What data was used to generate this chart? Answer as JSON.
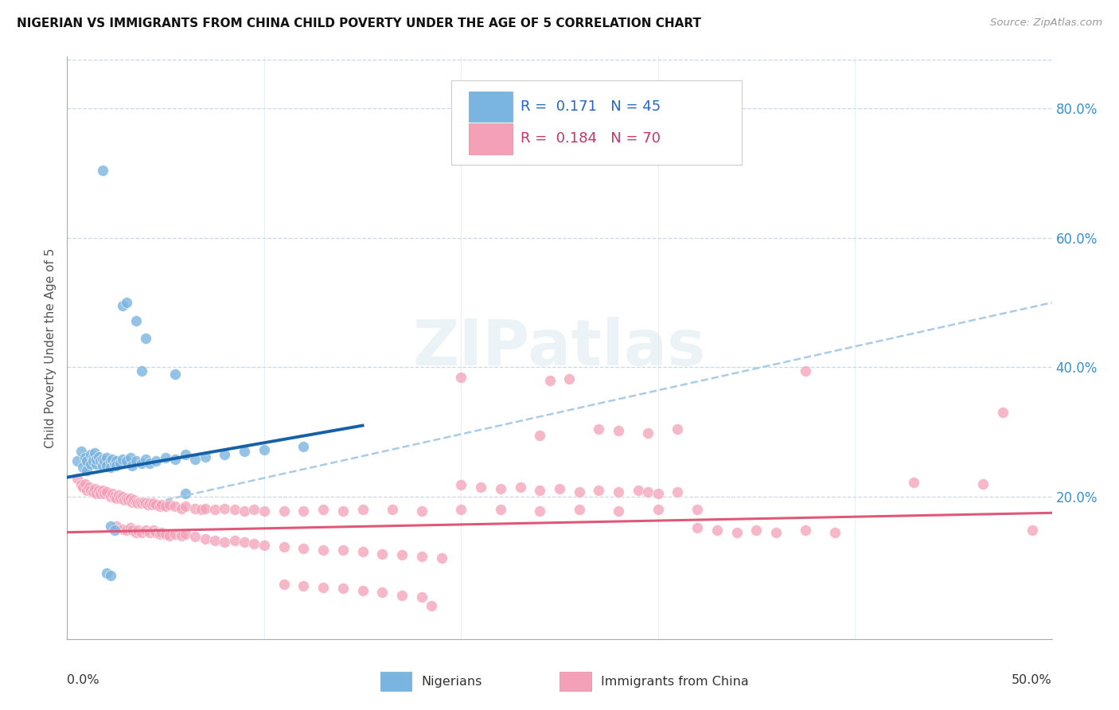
{
  "title": "NIGERIAN VS IMMIGRANTS FROM CHINA CHILD POVERTY UNDER THE AGE OF 5 CORRELATION CHART",
  "source": "Source: ZipAtlas.com",
  "ylabel": "Child Poverty Under the Age of 5",
  "xmin": 0.0,
  "xmax": 0.5,
  "ymin": -0.02,
  "ymax": 0.88,
  "yticks": [
    0.0,
    0.2,
    0.4,
    0.6,
    0.8
  ],
  "ytick_labels": [
    "",
    "20.0%",
    "40.0%",
    "60.0%",
    "80.0%"
  ],
  "blue_color": "#7ab4e0",
  "pink_color": "#f4a0b8",
  "blue_line_color": "#1560a8",
  "pink_line_color": "#e05878",
  "dashed_line_color": "#aacce8",
  "background_color": "#ffffff",
  "grid_color": "#c8d8e8",
  "blue_scatter": [
    [
      0.005,
      0.255
    ],
    [
      0.007,
      0.27
    ],
    [
      0.008,
      0.245
    ],
    [
      0.009,
      0.26
    ],
    [
      0.01,
      0.24
    ],
    [
      0.01,
      0.255
    ],
    [
      0.012,
      0.25
    ],
    [
      0.012,
      0.265
    ],
    [
      0.013,
      0.26
    ],
    [
      0.013,
      0.255
    ],
    [
      0.014,
      0.268
    ],
    [
      0.015,
      0.25
    ],
    [
      0.015,
      0.258
    ],
    [
      0.016,
      0.262
    ],
    [
      0.017,
      0.255
    ],
    [
      0.018,
      0.258
    ],
    [
      0.018,
      0.248
    ],
    [
      0.019,
      0.255
    ],
    [
      0.02,
      0.26
    ],
    [
      0.02,
      0.248
    ],
    [
      0.022,
      0.255
    ],
    [
      0.022,
      0.245
    ],
    [
      0.023,
      0.258
    ],
    [
      0.024,
      0.25
    ],
    [
      0.025,
      0.255
    ],
    [
      0.025,
      0.248
    ],
    [
      0.027,
      0.252
    ],
    [
      0.028,
      0.258
    ],
    [
      0.03,
      0.255
    ],
    [
      0.032,
      0.26
    ],
    [
      0.033,
      0.248
    ],
    [
      0.035,
      0.255
    ],
    [
      0.038,
      0.252
    ],
    [
      0.04,
      0.258
    ],
    [
      0.042,
      0.252
    ],
    [
      0.045,
      0.255
    ],
    [
      0.05,
      0.26
    ],
    [
      0.055,
      0.258
    ],
    [
      0.06,
      0.265
    ],
    [
      0.065,
      0.258
    ],
    [
      0.07,
      0.262
    ],
    [
      0.08,
      0.265
    ],
    [
      0.09,
      0.27
    ],
    [
      0.1,
      0.272
    ],
    [
      0.12,
      0.278
    ]
  ],
  "blue_outliers": [
    [
      0.018,
      0.705
    ],
    [
      0.028,
      0.495
    ],
    [
      0.03,
      0.5
    ],
    [
      0.035,
      0.472
    ],
    [
      0.04,
      0.445
    ],
    [
      0.038,
      0.395
    ],
    [
      0.055,
      0.39
    ],
    [
      0.022,
      0.155
    ],
    [
      0.024,
      0.148
    ],
    [
      0.06,
      0.205
    ],
    [
      0.02,
      0.082
    ],
    [
      0.022,
      0.078
    ]
  ],
  "pink_scatter": [
    [
      0.005,
      0.228
    ],
    [
      0.007,
      0.218
    ],
    [
      0.008,
      0.215
    ],
    [
      0.009,
      0.22
    ],
    [
      0.01,
      0.21
    ],
    [
      0.011,
      0.215
    ],
    [
      0.012,
      0.21
    ],
    [
      0.013,
      0.208
    ],
    [
      0.014,
      0.212
    ],
    [
      0.015,
      0.205
    ],
    [
      0.016,
      0.21
    ],
    [
      0.017,
      0.205
    ],
    [
      0.018,
      0.21
    ],
    [
      0.019,
      0.205
    ],
    [
      0.02,
      0.208
    ],
    [
      0.022,
      0.2
    ],
    [
      0.023,
      0.205
    ],
    [
      0.024,
      0.2
    ],
    [
      0.025,
      0.198
    ],
    [
      0.026,
      0.202
    ],
    [
      0.027,
      0.198
    ],
    [
      0.028,
      0.2
    ],
    [
      0.029,
      0.195
    ],
    [
      0.03,
      0.198
    ],
    [
      0.031,
      0.195
    ],
    [
      0.032,
      0.198
    ],
    [
      0.033,
      0.192
    ],
    [
      0.034,
      0.195
    ],
    [
      0.035,
      0.192
    ],
    [
      0.036,
      0.19
    ],
    [
      0.037,
      0.192
    ],
    [
      0.038,
      0.19
    ],
    [
      0.039,
      0.192
    ],
    [
      0.04,
      0.19
    ],
    [
      0.041,
      0.188
    ],
    [
      0.042,
      0.19
    ],
    [
      0.043,
      0.188
    ],
    [
      0.044,
      0.19
    ],
    [
      0.045,
      0.188
    ],
    [
      0.047,
      0.185
    ],
    [
      0.048,
      0.188
    ],
    [
      0.05,
      0.185
    ],
    [
      0.052,
      0.188
    ],
    [
      0.055,
      0.185
    ],
    [
      0.058,
      0.182
    ],
    [
      0.06,
      0.185
    ],
    [
      0.065,
      0.182
    ],
    [
      0.068,
      0.18
    ],
    [
      0.07,
      0.182
    ],
    [
      0.075,
      0.18
    ],
    [
      0.08,
      0.182
    ],
    [
      0.085,
      0.18
    ],
    [
      0.09,
      0.178
    ],
    [
      0.095,
      0.18
    ],
    [
      0.1,
      0.178
    ],
    [
      0.11,
      0.178
    ],
    [
      0.12,
      0.178
    ],
    [
      0.13,
      0.18
    ],
    [
      0.14,
      0.178
    ],
    [
      0.15,
      0.18
    ],
    [
      0.165,
      0.18
    ],
    [
      0.18,
      0.178
    ],
    [
      0.2,
      0.18
    ],
    [
      0.22,
      0.18
    ],
    [
      0.24,
      0.178
    ],
    [
      0.26,
      0.18
    ],
    [
      0.28,
      0.178
    ],
    [
      0.3,
      0.18
    ],
    [
      0.32,
      0.18
    ]
  ],
  "pink_outliers": [
    [
      0.025,
      0.155
    ],
    [
      0.028,
      0.15
    ],
    [
      0.03,
      0.148
    ],
    [
      0.032,
      0.152
    ],
    [
      0.033,
      0.148
    ],
    [
      0.035,
      0.145
    ],
    [
      0.036,
      0.148
    ],
    [
      0.038,
      0.145
    ],
    [
      0.04,
      0.148
    ],
    [
      0.042,
      0.145
    ],
    [
      0.044,
      0.148
    ],
    [
      0.045,
      0.145
    ],
    [
      0.047,
      0.142
    ],
    [
      0.048,
      0.145
    ],
    [
      0.05,
      0.142
    ],
    [
      0.052,
      0.14
    ],
    [
      0.055,
      0.142
    ],
    [
      0.058,
      0.14
    ],
    [
      0.06,
      0.142
    ],
    [
      0.065,
      0.138
    ],
    [
      0.07,
      0.135
    ],
    [
      0.075,
      0.132
    ],
    [
      0.08,
      0.13
    ],
    [
      0.085,
      0.132
    ],
    [
      0.09,
      0.13
    ],
    [
      0.095,
      0.128
    ],
    [
      0.1,
      0.125
    ],
    [
      0.11,
      0.122
    ],
    [
      0.12,
      0.12
    ],
    [
      0.13,
      0.118
    ],
    [
      0.14,
      0.118
    ],
    [
      0.15,
      0.115
    ],
    [
      0.16,
      0.112
    ],
    [
      0.17,
      0.11
    ],
    [
      0.18,
      0.108
    ],
    [
      0.19,
      0.105
    ],
    [
      0.11,
      0.065
    ],
    [
      0.12,
      0.062
    ],
    [
      0.13,
      0.06
    ],
    [
      0.14,
      0.058
    ],
    [
      0.15,
      0.055
    ],
    [
      0.16,
      0.052
    ],
    [
      0.17,
      0.048
    ],
    [
      0.18,
      0.045
    ],
    [
      0.185,
      0.032
    ],
    [
      0.2,
      0.218
    ],
    [
      0.21,
      0.215
    ],
    [
      0.22,
      0.212
    ],
    [
      0.23,
      0.215
    ],
    [
      0.24,
      0.21
    ],
    [
      0.25,
      0.212
    ],
    [
      0.26,
      0.208
    ],
    [
      0.27,
      0.21
    ],
    [
      0.28,
      0.208
    ],
    [
      0.29,
      0.21
    ],
    [
      0.295,
      0.208
    ],
    [
      0.3,
      0.205
    ],
    [
      0.31,
      0.208
    ],
    [
      0.32,
      0.152
    ],
    [
      0.33,
      0.148
    ],
    [
      0.34,
      0.145
    ],
    [
      0.35,
      0.148
    ],
    [
      0.36,
      0.145
    ],
    [
      0.375,
      0.148
    ],
    [
      0.39,
      0.145
    ],
    [
      0.27,
      0.305
    ],
    [
      0.28,
      0.302
    ],
    [
      0.295,
      0.298
    ],
    [
      0.31,
      0.305
    ],
    [
      0.245,
      0.38
    ],
    [
      0.255,
      0.382
    ],
    [
      0.375,
      0.395
    ],
    [
      0.2,
      0.385
    ],
    [
      0.24,
      0.295
    ],
    [
      0.43,
      0.222
    ],
    [
      0.465,
      0.22
    ],
    [
      0.475,
      0.33
    ],
    [
      0.49,
      0.148
    ]
  ],
  "blue_line": [
    [
      0.0,
      0.23
    ],
    [
      0.15,
      0.31
    ]
  ],
  "pink_line": [
    [
      0.0,
      0.145
    ],
    [
      0.5,
      0.175
    ]
  ],
  "dashed_line": [
    [
      0.05,
      0.195
    ],
    [
      0.5,
      0.5
    ]
  ]
}
